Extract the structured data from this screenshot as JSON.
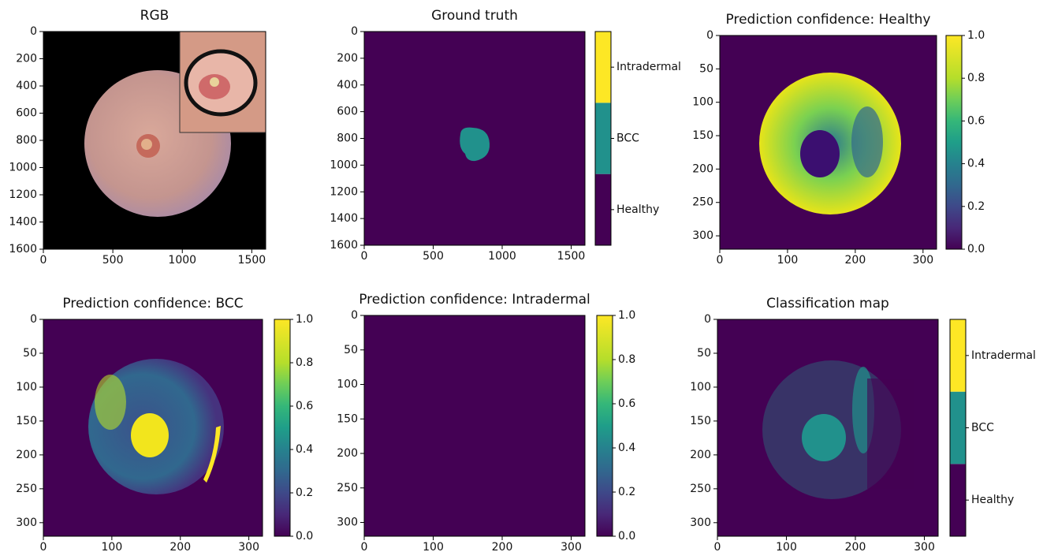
{
  "chart_data": [
    {
      "type": "image",
      "title": "RGB",
      "xlim": [
        0,
        1600
      ],
      "ylim": [
        1600,
        0
      ],
      "xticks": [
        0,
        500,
        1000,
        1500
      ],
      "yticks": [
        0,
        200,
        400,
        600,
        800,
        1000,
        1200,
        1400,
        1600
      ]
    },
    {
      "type": "image",
      "title": "Ground truth",
      "xlim": [
        0,
        1600
      ],
      "ylim": [
        1600,
        0
      ],
      "xticks": [
        0,
        500,
        1000,
        1500
      ],
      "yticks": [
        0,
        200,
        400,
        600,
        800,
        1000,
        1200,
        1400,
        1600
      ],
      "colorbar": {
        "categories": [
          "Healthy",
          "BCC",
          "Intradermal"
        ],
        "colors": [
          "#440154",
          "#21918c",
          "#fde725"
        ]
      }
    },
    {
      "type": "image",
      "title": "Prediction confidence: Healthy",
      "xlim": [
        0,
        320
      ],
      "ylim": [
        320,
        0
      ],
      "xticks": [
        0,
        100,
        200,
        300
      ],
      "yticks": [
        0,
        50,
        100,
        150,
        200,
        250,
        300
      ],
      "colorbar": {
        "colormap": "viridis",
        "lim": [
          0,
          1
        ],
        "ticks": [
          {
            "value": 0,
            "label": "0.0"
          },
          0.2,
          0.4,
          0.6,
          0.8,
          {
            "value": 1,
            "label": "1.0"
          }
        ]
      }
    },
    {
      "type": "image",
      "title": "Prediction confidence: BCC",
      "xlim": [
        0,
        320
      ],
      "ylim": [
        320,
        0
      ],
      "xticks": [
        0,
        100,
        200,
        300
      ],
      "yticks": [
        0,
        50,
        100,
        150,
        200,
        250,
        300
      ],
      "colorbar": {
        "colormap": "viridis",
        "lim": [
          0,
          1
        ],
        "ticks": [
          {
            "value": 0,
            "label": "0.0"
          },
          0.2,
          0.4,
          0.6,
          0.8,
          {
            "value": 1,
            "label": "1.0"
          }
        ]
      }
    },
    {
      "type": "image",
      "title": "Prediction confidence: Intradermal",
      "xlim": [
        0,
        320
      ],
      "ylim": [
        320,
        0
      ],
      "xticks": [
        0,
        100,
        200,
        300
      ],
      "yticks": [
        0,
        50,
        100,
        150,
        200,
        250,
        300
      ],
      "colorbar": {
        "colormap": "viridis",
        "lim": [
          0,
          1
        ],
        "ticks": [
          {
            "value": 0,
            "label": "0.0"
          },
          0.2,
          0.4,
          0.6,
          0.8,
          {
            "value": 1,
            "label": "1.0"
          }
        ]
      }
    },
    {
      "type": "image",
      "title": "Classification map",
      "xlim": [
        0,
        320
      ],
      "ylim": [
        320,
        0
      ],
      "xticks": [
        0,
        100,
        200,
        300
      ],
      "yticks": [
        0,
        50,
        100,
        150,
        200,
        250,
        300
      ],
      "colorbar": {
        "categories": [
          "Healthy",
          "BCC",
          "Intradermal"
        ],
        "colors": [
          "#440154",
          "#21918c",
          "#fde725"
        ]
      }
    }
  ]
}
